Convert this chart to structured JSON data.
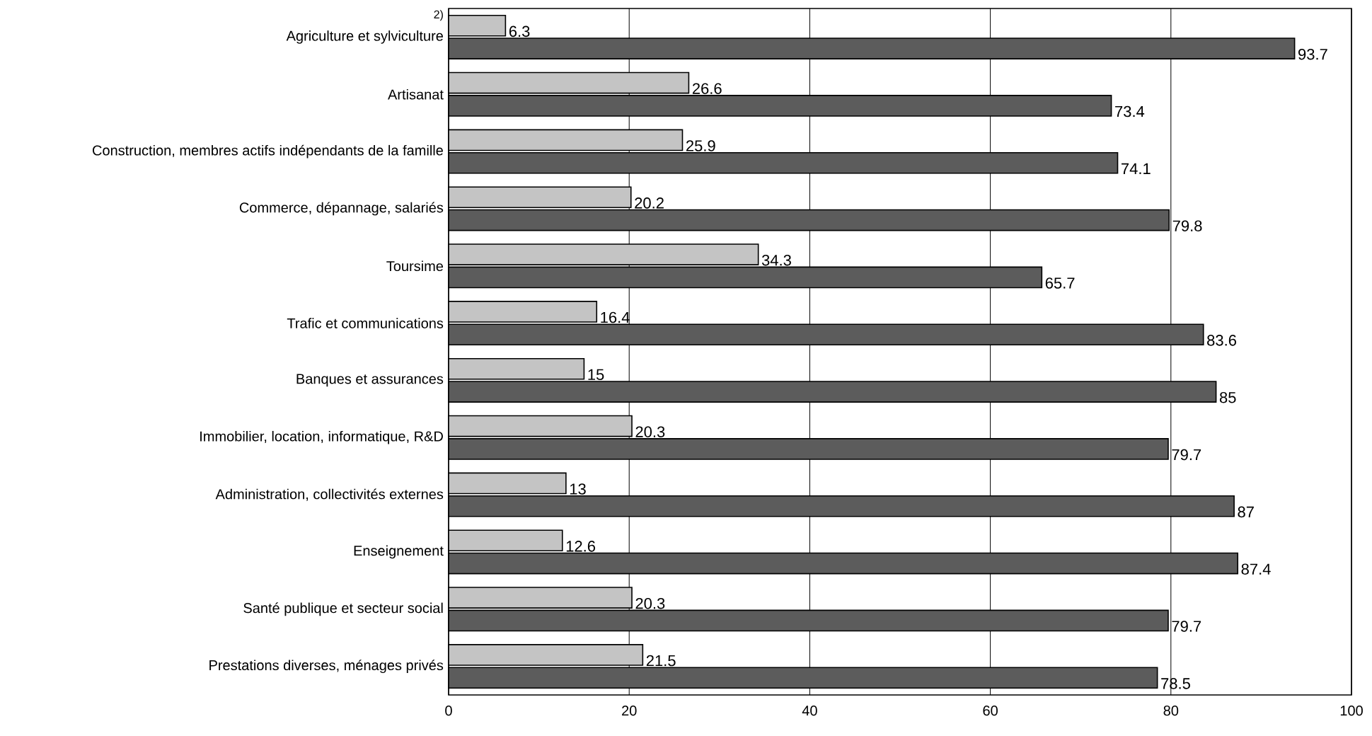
{
  "chart_data": {
    "type": "bar",
    "orientation": "horizontal",
    "categories": [
      "Agriculture et sylviculture",
      "Artisanat",
      "Construction, membres actifs indépendants de la famille",
      "Commerce, dépannage, salariés",
      "Toursime",
      "Trafic et communications",
      "Banques et assurances",
      "Immobilier, location, informatique, R&D",
      "Administration, collectivités externes",
      "Enseignement",
      "Santé publique et secteur social",
      "Prestations diverses, ménages privés"
    ],
    "series": [
      {
        "color": "#c4c4c4",
        "values": [
          6.3,
          26.6,
          25.9,
          20.2,
          34.3,
          16.4,
          15,
          20.3,
          13,
          12.6,
          20.3,
          21.5
        ]
      },
      {
        "color": "#5c5c5c",
        "values": [
          93.7,
          73.4,
          74.1,
          79.8,
          65.7,
          83.6,
          85,
          79.7,
          87,
          87.4,
          79.7,
          78.5
        ]
      }
    ],
    "xlim": [
      0,
      100
    ],
    "xticks": [
      0,
      20,
      40,
      60,
      80,
      100
    ],
    "grid": "x",
    "data_labels": true,
    "annotations": [
      "2)"
    ]
  }
}
